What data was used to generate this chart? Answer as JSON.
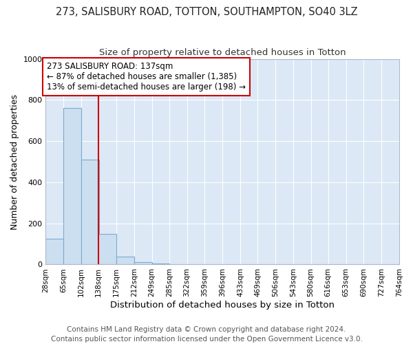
{
  "title": "273, SALISBURY ROAD, TOTTON, SOUTHAMPTON, SO40 3LZ",
  "subtitle": "Size of property relative to detached houses in Totton",
  "xlabel": "Distribution of detached houses by size in Totton",
  "ylabel": "Number of detached properties",
  "bar_edges": [
    28,
    65,
    102,
    138,
    175,
    212,
    249,
    285,
    322,
    359,
    396,
    433,
    469,
    506,
    543,
    580,
    616,
    653,
    690,
    727,
    764
  ],
  "bar_heights": [
    125,
    760,
    510,
    150,
    40,
    11,
    6,
    0,
    0,
    0,
    0,
    0,
    0,
    0,
    0,
    0,
    0,
    0,
    0,
    0
  ],
  "bar_color": "#ccdff0",
  "bar_edge_color": "#7aabcf",
  "property_line_x": 138,
  "annotation_line1": "273 SALISBURY ROAD: 137sqm",
  "annotation_line2": "← 87% of detached houses are smaller (1,385)",
  "annotation_line3": "13% of semi-detached houses are larger (198) →",
  "annotation_box_facecolor": "#ffffff",
  "annotation_box_edgecolor": "#cc0000",
  "vline_color": "#cc0000",
  "ylim": [
    0,
    1000
  ],
  "xlim": [
    28,
    764
  ],
  "tick_labels": [
    "28sqm",
    "65sqm",
    "102sqm",
    "138sqm",
    "175sqm",
    "212sqm",
    "249sqm",
    "285sqm",
    "322sqm",
    "359sqm",
    "396sqm",
    "433sqm",
    "469sqm",
    "506sqm",
    "543sqm",
    "580sqm",
    "616sqm",
    "653sqm",
    "690sqm",
    "727sqm",
    "764sqm"
  ],
  "footer_text": "Contains HM Land Registry data © Crown copyright and database right 2024.\nContains public sector information licensed under the Open Government Licence v3.0.",
  "fig_background": "#ffffff",
  "axes_background": "#dce8f5",
  "grid_color": "#ffffff",
  "title_fontsize": 10.5,
  "subtitle_fontsize": 9.5,
  "xlabel_fontsize": 9.5,
  "ylabel_fontsize": 9,
  "tick_fontsize": 7.5,
  "annotation_fontsize": 8.5,
  "footer_fontsize": 7.5
}
